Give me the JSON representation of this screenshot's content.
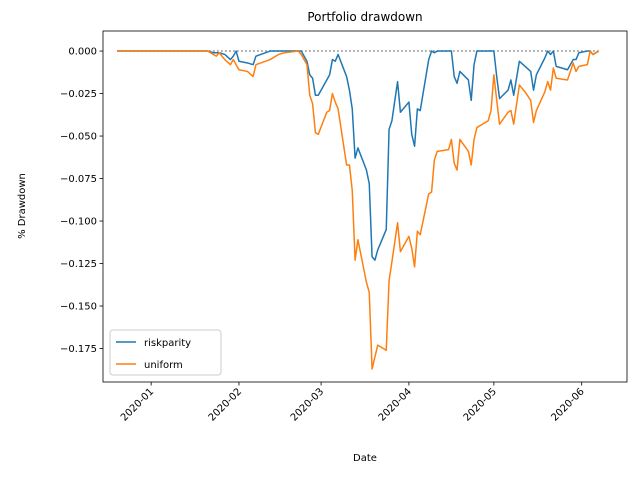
{
  "chart_data": {
    "type": "line",
    "title": "Portfolio drawdown",
    "x_label": "Date",
    "y_label": "% Drawdown",
    "x": [
      "2019-12-20",
      "2020-01-21",
      "2020-01-23",
      "2020-01-24",
      "2020-01-25",
      "2020-01-27",
      "2020-01-29",
      "2020-01-30",
      "2020-01-31",
      "2020-02-01",
      "2020-02-04",
      "2020-02-06",
      "2020-02-07",
      "2020-02-12",
      "2020-02-15",
      "2020-02-17",
      "2020-02-22",
      "2020-02-23",
      "2020-02-25",
      "2020-02-26",
      "2020-02-27",
      "2020-02-28",
      "2020-02-29",
      "2020-03-03",
      "2020-03-04",
      "2020-03-05",
      "2020-03-06",
      "2020-03-07",
      "2020-03-10",
      "2020-03-11",
      "2020-03-12",
      "2020-03-13",
      "2020-03-14",
      "2020-03-17",
      "2020-03-18",
      "2020-03-19",
      "2020-03-20",
      "2020-03-21",
      "2020-03-24",
      "2020-03-25",
      "2020-03-26",
      "2020-03-28",
      "2020-03-29",
      "2020-04-01",
      "2020-04-02",
      "2020-04-03",
      "2020-04-04",
      "2020-04-05",
      "2020-04-08",
      "2020-04-09",
      "2020-04-10",
      "2020-04-11",
      "2020-04-15",
      "2020-04-16",
      "2020-04-17",
      "2020-04-18",
      "2020-04-19",
      "2020-04-22",
      "2020-04-23",
      "2020-04-24",
      "2020-04-25",
      "2020-04-29",
      "2020-04-30",
      "2020-05-01",
      "2020-05-02",
      "2020-05-03",
      "2020-05-06",
      "2020-05-07",
      "2020-05-08",
      "2020-05-10",
      "2020-05-12",
      "2020-05-14",
      "2020-05-15",
      "2020-05-16",
      "2020-05-19",
      "2020-05-20",
      "2020-05-21",
      "2020-05-22",
      "2020-05-23",
      "2020-05-27",
      "2020-05-29",
      "2020-05-30",
      "2020-05-31",
      "2020-06-03",
      "2020-06-04",
      "2020-06-05",
      "2020-06-07"
    ],
    "series": [
      {
        "name": "riskparity",
        "color": "#1f77b4",
        "values": [
          0,
          0,
          -0.001,
          -0.001,
          -0.001,
          -0.002,
          -0.005,
          -0.003,
          0,
          -0.006,
          -0.007,
          -0.008,
          -0.003,
          0,
          0,
          0,
          0,
          0,
          -0.006,
          -0.014,
          -0.016,
          -0.026,
          -0.026,
          -0.017,
          -0.014,
          -0.005,
          -0.006,
          -0.002,
          -0.015,
          -0.023,
          -0.034,
          -0.063,
          -0.057,
          -0.07,
          -0.078,
          -0.121,
          -0.123,
          -0.117,
          -0.105,
          -0.046,
          -0.041,
          -0.018,
          -0.036,
          -0.03,
          -0.049,
          -0.056,
          -0.034,
          -0.035,
          -0.005,
          0,
          -0.001,
          0,
          0,
          0,
          -0.015,
          -0.019,
          -0.012,
          -0.017,
          -0.029,
          -0.008,
          0,
          0,
          0,
          0,
          -0.015,
          -0.028,
          -0.023,
          -0.017,
          -0.026,
          -0.006,
          -0.009,
          -0.012,
          -0.023,
          -0.014,
          -0.004,
          0,
          -0.002,
          0,
          -0.009,
          -0.011,
          -0.005,
          -0.005,
          -0.001,
          0,
          0,
          -0.002,
          0
        ]
      },
      {
        "name": "uniform",
        "color": "#ff7f0e",
        "values": [
          0,
          0,
          -0.002,
          -0.003,
          -0.001,
          -0.005,
          -0.008,
          -0.005,
          -0.008,
          -0.011,
          -0.012,
          -0.015,
          -0.008,
          -0.005,
          -0.002,
          -0.001,
          0,
          -0.002,
          -0.008,
          -0.026,
          -0.031,
          -0.048,
          -0.049,
          -0.036,
          -0.035,
          -0.025,
          -0.03,
          -0.034,
          -0.067,
          -0.067,
          -0.082,
          -0.123,
          -0.111,
          -0.136,
          -0.142,
          -0.187,
          -0.18,
          -0.173,
          -0.176,
          -0.135,
          -0.124,
          -0.101,
          -0.118,
          -0.109,
          -0.116,
          -0.127,
          -0.106,
          -0.108,
          -0.084,
          -0.083,
          -0.064,
          -0.059,
          -0.058,
          -0.052,
          -0.066,
          -0.07,
          -0.052,
          -0.059,
          -0.067,
          -0.052,
          -0.045,
          -0.041,
          -0.035,
          -0.014,
          -0.029,
          -0.043,
          -0.036,
          -0.035,
          -0.043,
          -0.02,
          -0.024,
          -0.029,
          -0.042,
          -0.035,
          -0.024,
          -0.018,
          -0.023,
          -0.01,
          -0.016,
          -0.017,
          -0.007,
          -0.012,
          -0.009,
          -0.008,
          0,
          -0.002,
          0
        ]
      }
    ],
    "reference_line": {
      "value": 0,
      "color": "#808080",
      "style": "dotted"
    },
    "xlim": [
      "2019-12-15",
      "2020-06-17"
    ],
    "xticks": [
      {
        "value": "2020-01-01",
        "label": "2020-01"
      },
      {
        "value": "2020-02-01",
        "label": "2020-02"
      },
      {
        "value": "2020-03-01",
        "label": "2020-03"
      },
      {
        "value": "2020-04-01",
        "label": "2020-04"
      },
      {
        "value": "2020-05-01",
        "label": "2020-05"
      },
      {
        "value": "2020-06-01",
        "label": "2020-06"
      }
    ],
    "ylim": [
      -0.1947,
      0.0118
    ],
    "yticks": [
      {
        "value": 0,
        "label": "0.000"
      },
      {
        "value": -0.025,
        "label": "−0.025"
      },
      {
        "value": -0.05,
        "label": "−0.050"
      },
      {
        "value": -0.075,
        "label": "−0.075"
      },
      {
        "value": -0.1,
        "label": "−0.100"
      },
      {
        "value": -0.125,
        "label": "−0.125"
      },
      {
        "value": -0.15,
        "label": "−0.150"
      },
      {
        "value": -0.175,
        "label": "−0.175"
      }
    ],
    "grid": false,
    "legend": "lower left"
  }
}
